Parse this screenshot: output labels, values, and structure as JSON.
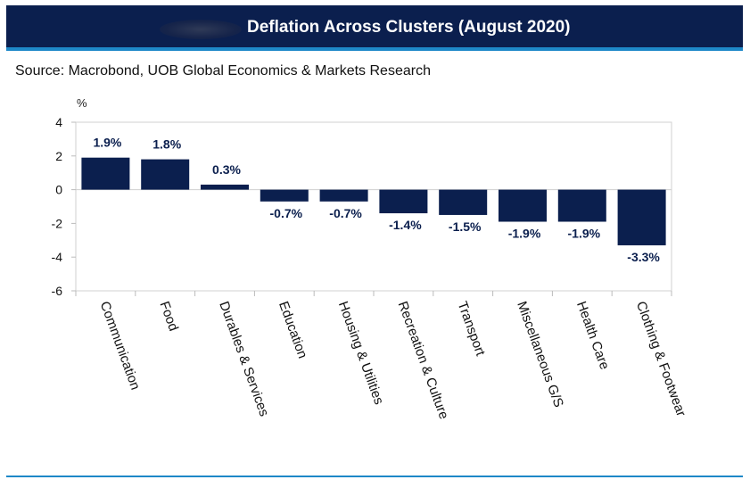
{
  "header": {
    "title": "Deflation Across Clusters (August 2020)"
  },
  "source_text": "Source: Macrobond, UOB Global Economics & Markets Research",
  "colors": {
    "title_bg": "#0b1f4e",
    "accent": "#1e88c8",
    "bar": "#0b1f4e",
    "label": "#0b1f4e"
  },
  "chart_data": {
    "type": "bar",
    "title": "",
    "xlabel": "",
    "ylabel": "%",
    "ylim": [
      -6,
      4
    ],
    "yticks": [
      4,
      2,
      0,
      -2,
      -4,
      -6
    ],
    "grid": false,
    "categories": [
      "Communication",
      "Food",
      "Durables & Services",
      "Education",
      "Housing & Utilities",
      "Recreation & Culture",
      "Transport",
      "Miscellaneous G/S",
      "Health Care",
      "Clothing & Footwear"
    ],
    "values": [
      1.9,
      1.8,
      0.3,
      -0.7,
      -0.7,
      -1.4,
      -1.5,
      -1.9,
      -1.9,
      -3.3
    ],
    "data_labels": [
      "1.9%",
      "1.8%",
      "0.3%",
      "-0.7%",
      "-0.7%",
      "-1.4%",
      "-1.5%",
      "-1.9%",
      "-1.9%",
      "-3.3%"
    ]
  }
}
